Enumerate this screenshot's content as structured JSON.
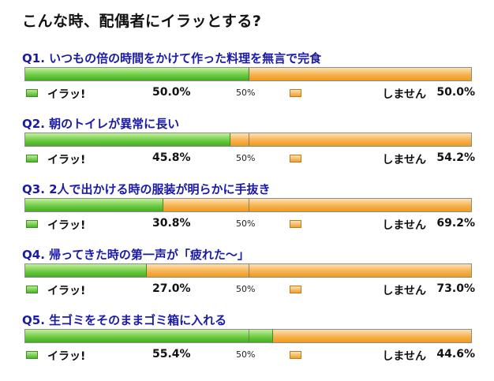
{
  "title": "こんな時、配偶者にイラッとする?",
  "chart_data": {
    "type": "bar",
    "title": "こんな時、配偶者にイラッとする?",
    "xlim": [
      0,
      100
    ],
    "midline_label": "50%",
    "series_labels": [
      "イラッ!",
      "しません"
    ],
    "colors": {
      "series_a": "#5cbf35",
      "series_b": "#f4a93c"
    },
    "questions": [
      {
        "label": "Q1. いつもの倍の時間をかけて作った料理を無言で完食",
        "a": 50.0,
        "b": 50.0,
        "a_text": "50.0%",
        "b_text": "50.0%"
      },
      {
        "label": "Q2. 朝のトイレが異常に長い",
        "a": 45.8,
        "b": 54.2,
        "a_text": "45.8%",
        "b_text": "54.2%"
      },
      {
        "label": "Q3. 2人で出かける時の服装が明らかに手抜き",
        "a": 30.8,
        "b": 69.2,
        "a_text": "30.8%",
        "b_text": "69.2%"
      },
      {
        "label": "Q4. 帰ってきた時の第一声が「疲れた～」",
        "a": 27.0,
        "b": 73.0,
        "a_text": "27.0%",
        "b_text": "73.0%"
      },
      {
        "label": "Q5. 生ゴミをそのままゴミ箱に入れる",
        "a": 55.4,
        "b": 44.6,
        "a_text": "55.4%",
        "b_text": "44.6%"
      }
    ]
  }
}
